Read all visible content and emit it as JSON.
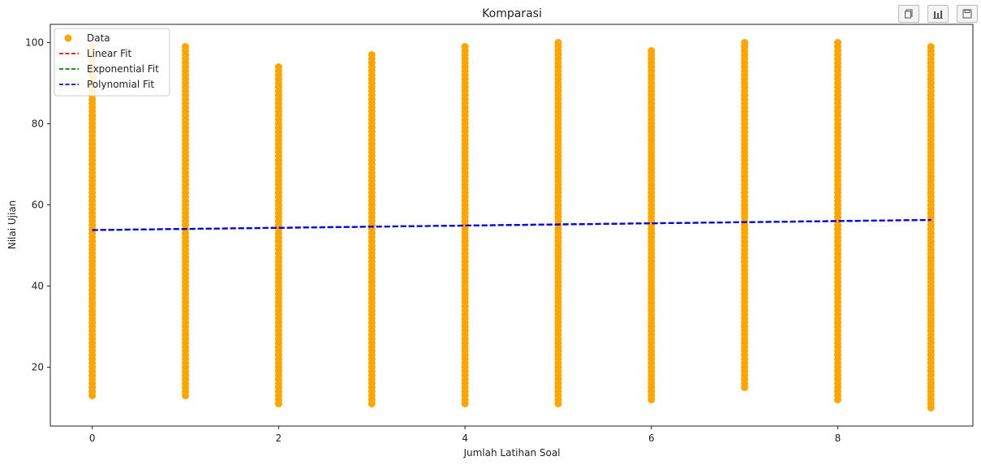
{
  "toolbar": {
    "buttons": [
      {
        "icon": "copy-icon"
      },
      {
        "icon": "bar-chart-icon"
      },
      {
        "icon": "save-icon"
      }
    ]
  },
  "colors": {
    "data": "#FFA500",
    "linear": "#FF0000",
    "exponential": "#008000",
    "polynomial": "#0000FF",
    "axes": "#222222"
  },
  "chart_data": {
    "type": "scatter",
    "title": "Komparasi",
    "xlabel": "Jumlah Latihan Soal",
    "ylabel": "Nilai Ujian",
    "xlim": [
      -0.45,
      9.45
    ],
    "ylim": [
      5.5,
      104.5
    ],
    "xticks": [
      0,
      2,
      4,
      6,
      8
    ],
    "yticks": [
      20,
      40,
      60,
      80,
      100
    ],
    "grid": false,
    "legend_position": "top-left",
    "legend": [
      "Data",
      "Linear Fit",
      "Exponential Fit",
      "Polynomial Fit"
    ],
    "scatter": {
      "name": "Data",
      "columns": [
        {
          "x": 0,
          "min": 13,
          "max": 99
        },
        {
          "x": 1,
          "min": 13,
          "max": 99
        },
        {
          "x": 2,
          "min": 11,
          "max": 94
        },
        {
          "x": 3,
          "min": 11,
          "max": 97
        },
        {
          "x": 4,
          "min": 11,
          "max": 99
        },
        {
          "x": 5,
          "min": 11,
          "max": 100
        },
        {
          "x": 6,
          "min": 12,
          "max": 98
        },
        {
          "x": 7,
          "min": 15,
          "max": 100
        },
        {
          "x": 8,
          "min": 12,
          "max": 100
        },
        {
          "x": 9,
          "min": 10,
          "max": 99
        }
      ]
    },
    "series": [
      {
        "name": "Linear Fit",
        "style": "dashed",
        "x": [
          0,
          9
        ],
        "y": [
          53.8,
          56.3
        ]
      },
      {
        "name": "Exponential Fit",
        "style": "dashed",
        "x": [
          0,
          9
        ],
        "y": [
          53.8,
          56.3
        ]
      },
      {
        "name": "Polynomial Fit",
        "style": "dashed",
        "x": [
          0,
          9
        ],
        "y": [
          53.8,
          56.3
        ]
      }
    ]
  }
}
